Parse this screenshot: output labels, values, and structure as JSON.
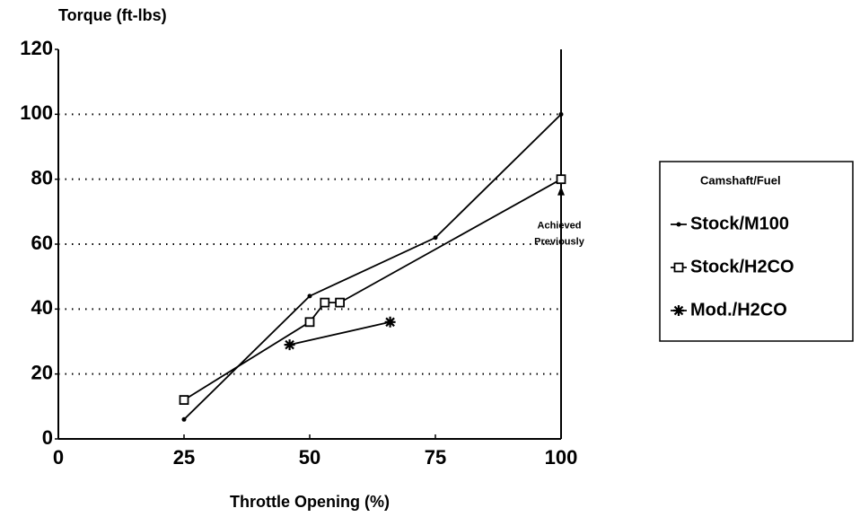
{
  "chart_data": {
    "type": "line",
    "y_label": "Torque (ft-lbs)",
    "x_label": "Throttle Opening (%)",
    "xlim": [
      0,
      100
    ],
    "xticks": [
      0,
      25,
      50,
      75,
      100
    ],
    "ylim": [
      0,
      120
    ],
    "yticks": [
      0,
      20,
      40,
      60,
      80,
      100,
      120
    ],
    "grid": true,
    "legend_title": "Camshaft/Fuel",
    "legend": "right",
    "annotation": [
      "Achieved",
      "Previously"
    ],
    "series": [
      {
        "name": "Stock/M100",
        "color": "#000000",
        "marker": "dot",
        "x": [
          25,
          50,
          75,
          100
        ],
        "values": [
          6,
          44,
          62,
          100
        ]
      },
      {
        "name": "Stock/H2CO",
        "color": "#000000",
        "marker": "square",
        "x": [
          25,
          50,
          53,
          56,
          100
        ],
        "values": [
          12,
          36,
          42,
          42,
          80
        ]
      },
      {
        "name": "Mod./H2CO",
        "color": "#000000",
        "marker": "star",
        "x": [
          46,
          66
        ],
        "values": [
          29,
          36
        ]
      }
    ]
  }
}
